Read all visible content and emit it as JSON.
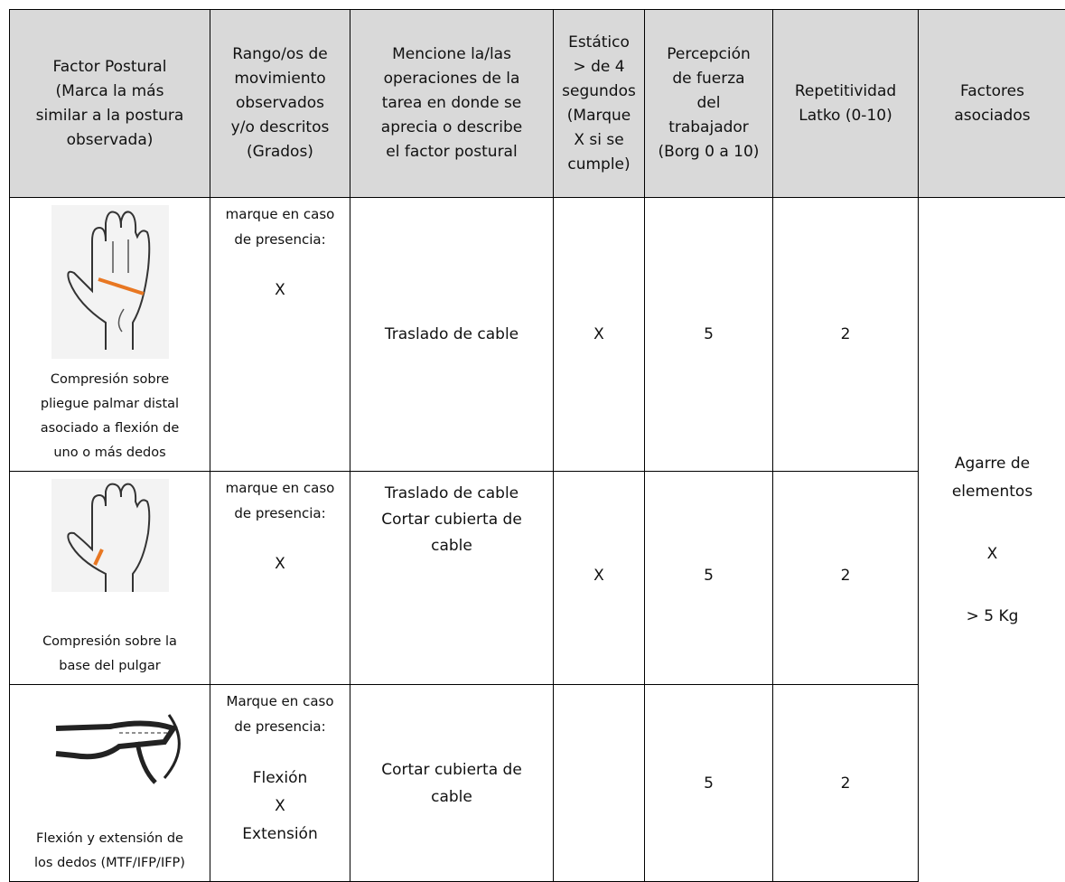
{
  "header": {
    "columns": [
      [
        "Factor Postural",
        "(Marca la más",
        "similar a la postura",
        "observada)"
      ],
      [
        "Rango/os de",
        "movimiento",
        "observados",
        "y/o descritos",
        "(Grados)"
      ],
      [
        "Mencione la/las",
        "operaciones de la",
        "tarea en donde se",
        "aprecia o describe",
        "el factor postural"
      ],
      [
        "Estático",
        "> de 4",
        "segundos",
        "(Marque",
        "X si se",
        "cumple)"
      ],
      [
        "Percepción",
        "de fuerza",
        "del",
        "trabajador",
        "(Borg 0 a 10)"
      ],
      [
        "Repetitividad",
        "Latko (0-10)"
      ],
      [
        "Factores",
        "asociados"
      ]
    ]
  },
  "rows": [
    {
      "caption": [
        "Compresión sobre",
        "pliegue palmar distal",
        "asociado a flexión de",
        "uno o más dedos"
      ],
      "range": [
        "marque en caso",
        "de presencia:"
      ],
      "range_mark": "X",
      "operations": [
        "Traslado de cable"
      ],
      "static": "X",
      "force": "5",
      "repetition": "2"
    },
    {
      "caption": [
        "Compresión sobre la",
        "base del pulgar"
      ],
      "range": [
        "marque en caso",
        "de presencia:"
      ],
      "range_mark": "X",
      "operations": [
        "Traslado de cable",
        "Cortar cubierta de",
        "cable"
      ],
      "static": "X",
      "force": "5",
      "repetition": "2"
    },
    {
      "caption": [
        "Flexión y extensión de",
        "los dedos (MTF/IFP/IFP)"
      ],
      "range": [
        "Marque en caso",
        "de presencia:"
      ],
      "range_mark": [
        "Flexión",
        "X",
        "Extensión"
      ],
      "operations": [
        "Cortar cubierta de",
        "cable"
      ],
      "force": "5",
      "repetition": "2"
    }
  ],
  "associated": [
    "Agarre de",
    "elementos",
    "X",
    "> 5 Kg"
  ]
}
